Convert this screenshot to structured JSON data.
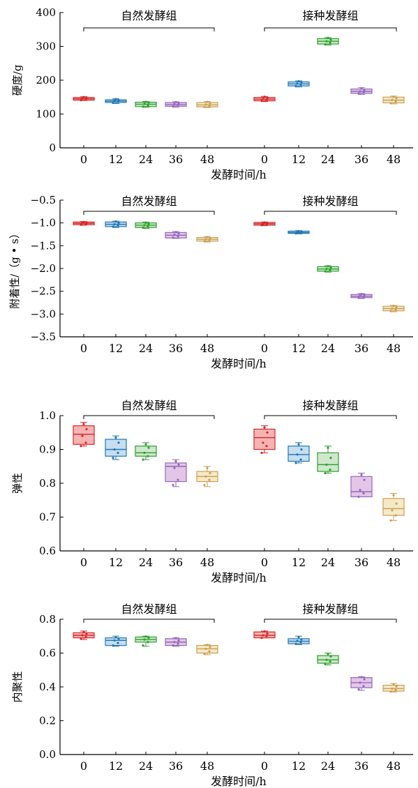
{
  "chart_data": [
    {
      "type": "box",
      "xlabel": "发酵时间/h",
      "ylabel": "硬度/g",
      "ylim": [
        0,
        400
      ],
      "yticks": [
        0,
        100,
        200,
        300,
        400
      ],
      "groups": [
        {
          "name": "自然发酵组",
          "categories": [
            "0",
            "12",
            "24",
            "36",
            "48"
          ],
          "boxes": [
            {
              "x": "0",
              "min": 140,
              "q1": 141,
              "median": 145,
              "q3": 149,
              "max": 151,
              "points": [
                141,
                144,
                146,
                149,
                150
              ]
            },
            {
              "x": "12",
              "min": 131,
              "q1": 134,
              "median": 138,
              "q3": 142,
              "max": 145,
              "points": [
                133,
                136,
                139,
                141,
                144
              ]
            },
            {
              "x": "24",
              "min": 120,
              "q1": 122,
              "median": 129,
              "q3": 135,
              "max": 137,
              "points": [
                122,
                126,
                130,
                134,
                136
              ]
            },
            {
              "x": "36",
              "min": 120,
              "q1": 123,
              "median": 128,
              "q3": 134,
              "max": 136,
              "points": [
                123,
                126,
                129,
                132,
                135
              ]
            },
            {
              "x": "48",
              "min": 119,
              "q1": 121,
              "median": 127,
              "q3": 134,
              "max": 137,
              "points": [
                121,
                125,
                128,
                132,
                136
              ]
            }
          ]
        },
        {
          "name": "接种发酵组",
          "categories": [
            "0",
            "12",
            "24",
            "36",
            "48"
          ],
          "boxes": [
            {
              "x": "0",
              "min": 137,
              "q1": 139,
              "median": 144,
              "q3": 149,
              "max": 152,
              "points": [
                139,
                142,
                145,
                148,
                151
              ]
            },
            {
              "x": "12",
              "min": 180,
              "q1": 183,
              "median": 189,
              "q3": 195,
              "max": 198,
              "points": [
                183,
                187,
                190,
                194,
                197
              ]
            },
            {
              "x": "24",
              "min": 304,
              "q1": 307,
              "median": 315,
              "q3": 323,
              "max": 326,
              "points": [
                306,
                311,
                315,
                320,
                325
              ]
            },
            {
              "x": "36",
              "min": 158,
              "q1": 161,
              "median": 167,
              "q3": 174,
              "max": 178,
              "points": [
                161,
                164,
                167,
                171,
                176
              ]
            },
            {
              "x": "48",
              "min": 130,
              "q1": 133,
              "median": 141,
              "q3": 150,
              "max": 153,
              "points": [
                132,
                137,
                142,
                147,
                151
              ]
            }
          ]
        }
      ]
    },
    {
      "type": "box",
      "xlabel": "发酵时间/h",
      "ylabel": "附着性/（g • s）",
      "ylim": [
        -3.5,
        -0.5
      ],
      "yticks": [
        -3.5,
        -3.0,
        -2.5,
        -2.0,
        -1.5,
        -1.0,
        -0.5
      ],
      "groups": [
        {
          "name": "自然发酵组",
          "categories": [
            "0",
            "12",
            "24",
            "36",
            "48"
          ],
          "boxes": [
            {
              "x": "0",
              "min": -1.05,
              "q1": -1.04,
              "median": -1.01,
              "q3": -0.98,
              "max": -0.97,
              "points": [
                -1.04,
                -1.02,
                -1.0,
                -0.99,
                -0.98
              ]
            },
            {
              "x": "12",
              "min": -1.1,
              "q1": -1.08,
              "median": -1.03,
              "q3": -0.98,
              "max": -0.96,
              "points": [
                -1.08,
                -1.05,
                -1.03,
                -1.0,
                -0.97
              ]
            },
            {
              "x": "24",
              "min": -1.12,
              "q1": -1.1,
              "median": -1.05,
              "q3": -1.0,
              "max": -0.98,
              "points": [
                -1.1,
                -1.07,
                -1.05,
                -1.02,
                -1.0
              ]
            },
            {
              "x": "36",
              "min": -1.34,
              "q1": -1.33,
              "median": -1.27,
              "q3": -1.21,
              "max": -1.19,
              "points": [
                -1.32,
                -1.29,
                -1.26,
                -1.23,
                -1.2
              ]
            },
            {
              "x": "48",
              "min": -1.42,
              "q1": -1.4,
              "median": -1.36,
              "q3": -1.32,
              "max": -1.3,
              "points": [
                -1.4,
                -1.38,
                -1.36,
                -1.34,
                -1.31
              ]
            }
          ]
        },
        {
          "name": "接种发酵组",
          "categories": [
            "0",
            "12",
            "24",
            "36",
            "48"
          ],
          "boxes": [
            {
              "x": "0",
              "min": -1.06,
              "q1": -1.05,
              "median": -1.02,
              "q3": -0.99,
              "max": -0.98,
              "points": [
                -1.05,
                -1.03,
                -1.02,
                -1.0,
                -0.99
              ]
            },
            {
              "x": "12",
              "min": -1.24,
              "q1": -1.23,
              "median": -1.21,
              "q3": -1.18,
              "max": -1.17,
              "points": [
                -1.23,
                -1.22,
                -1.21,
                -1.19,
                -1.18
              ]
            },
            {
              "x": "24",
              "min": -2.08,
              "q1": -2.06,
              "median": -2.01,
              "q3": -1.96,
              "max": -1.94,
              "points": [
                -2.06,
                -2.03,
                -2.01,
                -1.98,
                -1.95
              ]
            },
            {
              "x": "36",
              "min": -2.66,
              "q1": -2.64,
              "median": -2.61,
              "q3": -2.57,
              "max": -2.55,
              "points": [
                -2.64,
                -2.62,
                -2.6,
                -2.58,
                -2.56
              ]
            },
            {
              "x": "48",
              "min": -2.95,
              "q1": -2.93,
              "median": -2.88,
              "q3": -2.83,
              "max": -2.81,
              "points": [
                -2.93,
                -2.9,
                -2.88,
                -2.85,
                -2.82
              ]
            }
          ]
        }
      ]
    },
    {
      "type": "box",
      "xlabel": "发酵时间/h",
      "ylabel": "弹性",
      "ylim": [
        0.6,
        1.0
      ],
      "yticks": [
        0.6,
        0.7,
        0.8,
        0.9,
        1.0
      ],
      "groups": [
        {
          "name": "自然发酵组",
          "categories": [
            "0",
            "12",
            "24",
            "36",
            "48"
          ],
          "boxes": [
            {
              "x": "0",
              "min": 0.91,
              "q1": 0.915,
              "median": 0.945,
              "q3": 0.97,
              "max": 0.98,
              "points": [
                0.91,
                0.92,
                0.94,
                0.96,
                0.975
              ]
            },
            {
              "x": "12",
              "min": 0.87,
              "q1": 0.88,
              "median": 0.9,
              "q3": 0.93,
              "max": 0.94,
              "points": [
                0.875,
                0.89,
                0.9,
                0.92,
                0.935
              ]
            },
            {
              "x": "24",
              "min": 0.87,
              "q1": 0.88,
              "median": 0.89,
              "q3": 0.91,
              "max": 0.92,
              "points": [
                0.87,
                0.88,
                0.89,
                0.905,
                0.915
              ]
            },
            {
              "x": "36",
              "min": 0.79,
              "q1": 0.805,
              "median": 0.85,
              "q3": 0.86,
              "max": 0.87,
              "points": [
                0.795,
                0.81,
                0.845,
                0.855,
                0.865
              ]
            },
            {
              "x": "48",
              "min": 0.79,
              "q1": 0.805,
              "median": 0.82,
              "q3": 0.835,
              "max": 0.85,
              "points": [
                0.795,
                0.81,
                0.82,
                0.83,
                0.845
              ]
            }
          ]
        },
        {
          "name": "接种发酵组",
          "categories": [
            "0",
            "12",
            "24",
            "36",
            "48"
          ],
          "boxes": [
            {
              "x": "0",
              "min": 0.89,
              "q1": 0.9,
              "median": 0.935,
              "q3": 0.96,
              "max": 0.97,
              "points": [
                0.89,
                0.91,
                0.92,
                0.95,
                0.965
              ]
            },
            {
              "x": "12",
              "min": 0.86,
              "q1": 0.865,
              "median": 0.885,
              "q3": 0.91,
              "max": 0.92,
              "points": [
                0.86,
                0.87,
                0.885,
                0.9,
                0.915
              ]
            },
            {
              "x": "24",
              "min": 0.83,
              "q1": 0.835,
              "median": 0.855,
              "q3": 0.89,
              "max": 0.91,
              "points": [
                0.83,
                0.84,
                0.855,
                0.875,
                0.905
              ]
            },
            {
              "x": "36",
              "min": 0.76,
              "q1": 0.76,
              "median": 0.775,
              "q3": 0.82,
              "max": 0.83,
              "points": [
                0.76,
                0.77,
                0.78,
                0.81,
                0.825
              ]
            },
            {
              "x": "48",
              "min": 0.69,
              "q1": 0.705,
              "median": 0.725,
              "q3": 0.755,
              "max": 0.77,
              "points": [
                0.69,
                0.705,
                0.72,
                0.74,
                0.765
              ]
            }
          ]
        }
      ]
    },
    {
      "type": "box",
      "xlabel": "发酵时间/h",
      "ylabel": "内聚性",
      "ylim": [
        0.0,
        0.8
      ],
      "yticks": [
        0.0,
        0.2,
        0.4,
        0.6,
        0.8
      ],
      "groups": [
        {
          "name": "自然发酵组",
          "categories": [
            "0",
            "12",
            "24",
            "36",
            "48"
          ],
          "boxes": [
            {
              "x": "0",
              "min": 0.68,
              "q1": 0.69,
              "median": 0.705,
              "q3": 0.72,
              "max": 0.73,
              "points": [
                0.685,
                0.695,
                0.705,
                0.715,
                0.725
              ]
            },
            {
              "x": "12",
              "min": 0.64,
              "q1": 0.645,
              "median": 0.675,
              "q3": 0.69,
              "max": 0.7,
              "points": [
                0.645,
                0.66,
                0.675,
                0.685,
                0.695
              ]
            },
            {
              "x": "24",
              "min": 0.64,
              "q1": 0.665,
              "median": 0.68,
              "q3": 0.695,
              "max": 0.7,
              "points": [
                0.645,
                0.665,
                0.68,
                0.69,
                0.698
              ]
            },
            {
              "x": "36",
              "min": 0.64,
              "q1": 0.645,
              "median": 0.665,
              "q3": 0.685,
              "max": 0.69,
              "points": [
                0.645,
                0.655,
                0.665,
                0.675,
                0.688
              ]
            },
            {
              "x": "48",
              "min": 0.59,
              "q1": 0.6,
              "median": 0.625,
              "q3": 0.645,
              "max": 0.65,
              "points": [
                0.595,
                0.61,
                0.625,
                0.635,
                0.648
              ]
            }
          ]
        },
        {
          "name": "接种发酵组",
          "categories": [
            "0",
            "12",
            "24",
            "36",
            "48"
          ],
          "boxes": [
            {
              "x": "0",
              "min": 0.69,
              "q1": 0.69,
              "median": 0.705,
              "q3": 0.725,
              "max": 0.73,
              "points": [
                0.69,
                0.7,
                0.705,
                0.715,
                0.728
              ]
            },
            {
              "x": "12",
              "min": 0.65,
              "q1": 0.655,
              "median": 0.67,
              "q3": 0.685,
              "max": 0.7,
              "points": [
                0.655,
                0.665,
                0.672,
                0.68,
                0.695
              ]
            },
            {
              "x": "24",
              "min": 0.53,
              "q1": 0.54,
              "median": 0.56,
              "q3": 0.585,
              "max": 0.6,
              "points": [
                0.535,
                0.55,
                0.56,
                0.58,
                0.595
              ]
            },
            {
              "x": "36",
              "min": 0.38,
              "q1": 0.395,
              "median": 0.425,
              "q3": 0.455,
              "max": 0.46,
              "points": [
                0.385,
                0.405,
                0.425,
                0.445,
                0.458
              ]
            },
            {
              "x": "48",
              "min": 0.37,
              "q1": 0.375,
              "median": 0.39,
              "q3": 0.41,
              "max": 0.42,
              "points": [
                0.372,
                0.382,
                0.39,
                0.402,
                0.415
              ]
            }
          ]
        }
      ]
    }
  ],
  "colors": {
    "series": [
      "#d62728",
      "#1f77b4",
      "#2ca02c",
      "#9467bd",
      "#c8a055"
    ],
    "fills": [
      "#f6b3b3",
      "#c6def0",
      "#cfe7cd",
      "#e3c6e6",
      "#f6e9c8"
    ]
  }
}
